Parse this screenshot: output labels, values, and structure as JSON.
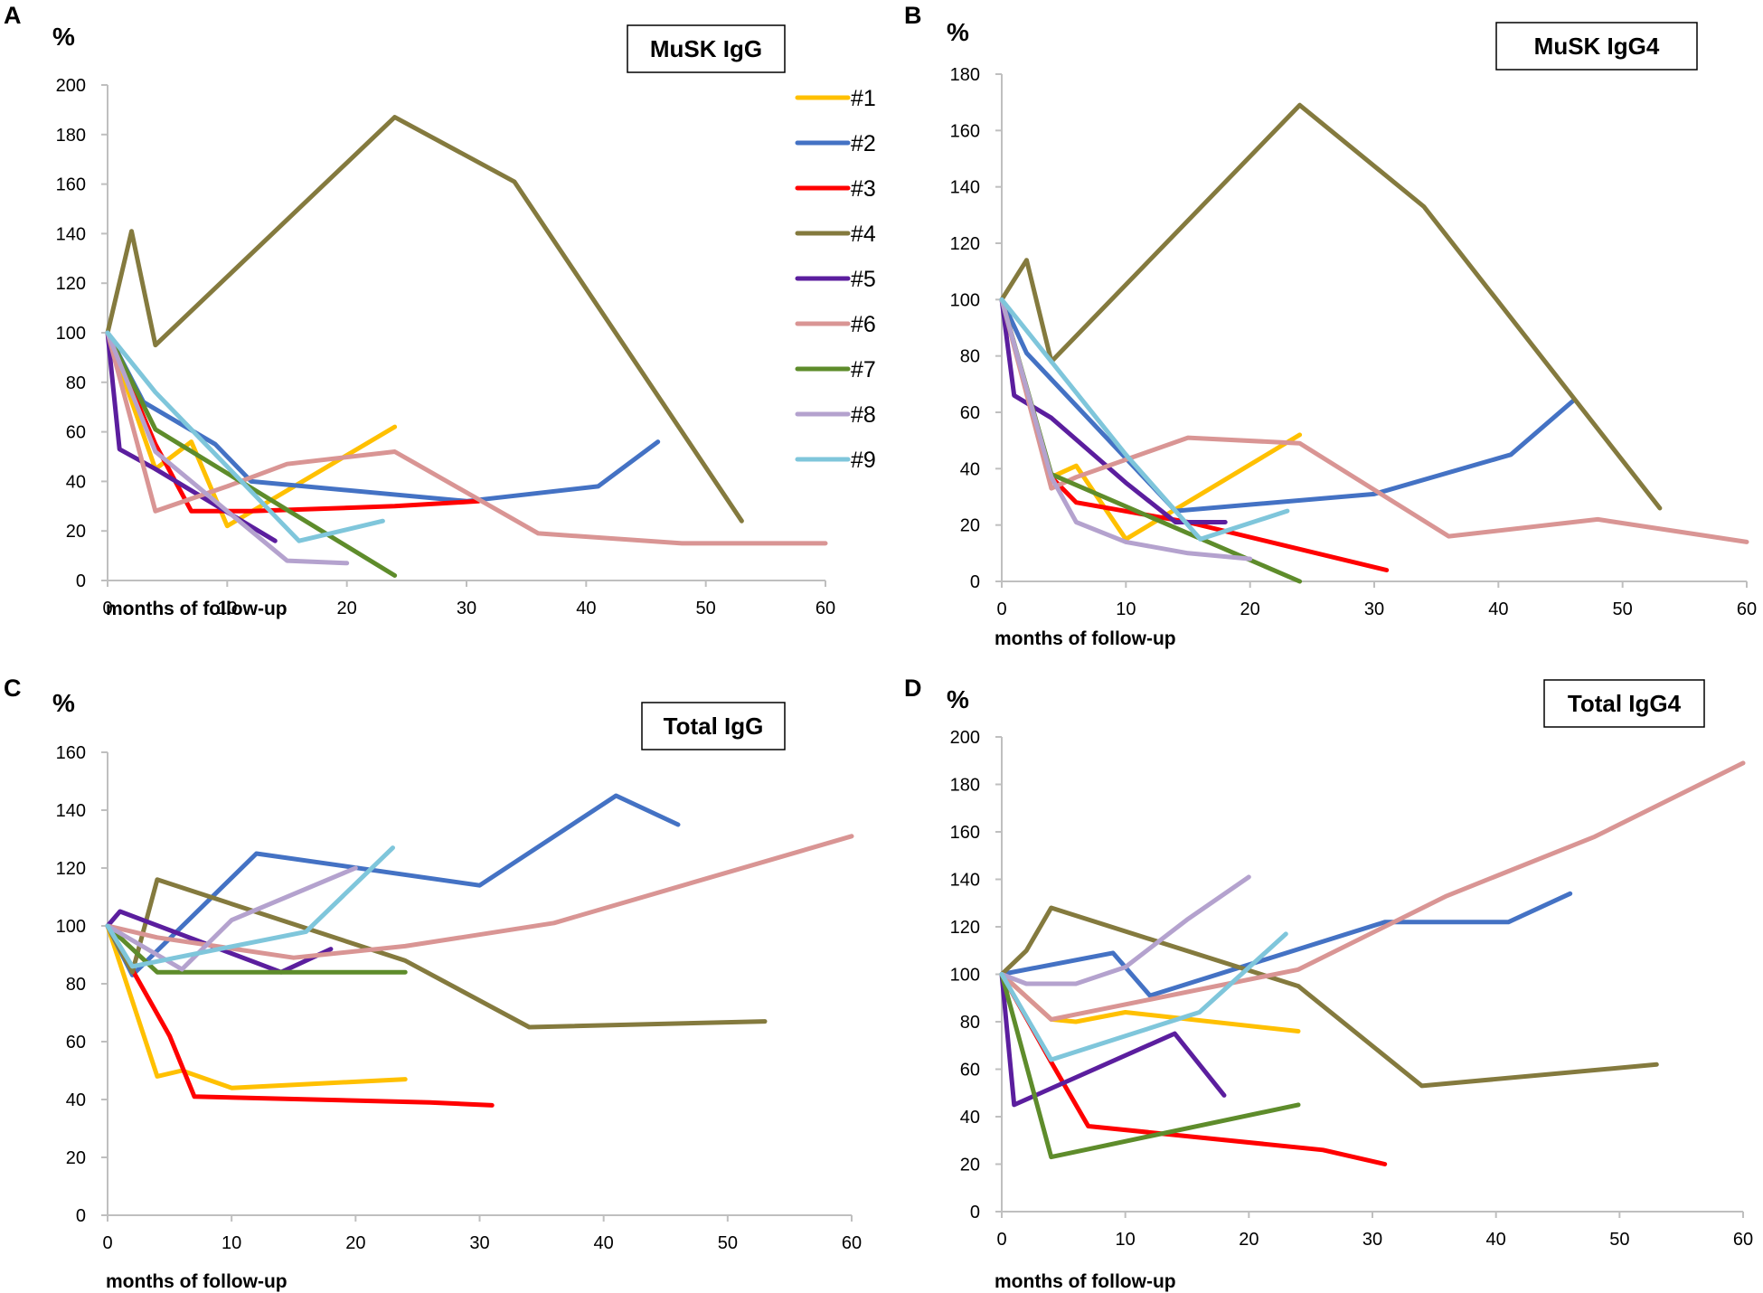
{
  "figure": {
    "legend": {
      "entries": [
        {
          "label": "#1",
          "color": "#FFC000"
        },
        {
          "label": "#2",
          "color": "#4472C4"
        },
        {
          "label": "#3",
          "color": "#FF0000"
        },
        {
          "label": "#4",
          "color": "#847A3E"
        },
        {
          "label": "#5",
          "color": "#5B1E9E"
        },
        {
          "label": "#6",
          "color": "#D99594"
        },
        {
          "label": "#7",
          "color": "#5E8C2B"
        },
        {
          "label": "#8",
          "color": "#B4A2CE"
        },
        {
          "label": "#9",
          "color": "#7FC6DB"
        }
      ]
    }
  },
  "chart_data": [
    {
      "panel": "A",
      "type": "line",
      "title": "MuSK IgG",
      "ylabel": "%",
      "xlabel": "months of follow-up",
      "xlim": [
        0,
        60
      ],
      "ylim": [
        0,
        200
      ],
      "xticks": [
        0,
        10,
        20,
        30,
        40,
        50,
        60
      ],
      "yticks": [
        0,
        20,
        40,
        60,
        80,
        100,
        120,
        140,
        160,
        180,
        200
      ],
      "series": [
        {
          "name": "#1",
          "x": [
            0,
            4,
            7,
            10,
            24
          ],
          "y": [
            100,
            45,
            56,
            22,
            62
          ]
        },
        {
          "name": "#2",
          "x": [
            0,
            3,
            9,
            12,
            30,
            41,
            46
          ],
          "y": [
            100,
            72,
            55,
            40,
            32,
            38,
            56
          ]
        },
        {
          "name": "#3",
          "x": [
            0,
            4,
            7,
            12,
            24,
            31
          ],
          "y": [
            100,
            55,
            28,
            28,
            30,
            32
          ]
        },
        {
          "name": "#4",
          "x": [
            0,
            2,
            4,
            24,
            34,
            53
          ],
          "y": [
            100,
            141,
            95,
            187,
            161,
            24
          ]
        },
        {
          "name": "#5",
          "x": [
            0,
            1,
            4,
            14
          ],
          "y": [
            100,
            53,
            45,
            16
          ]
        },
        {
          "name": "#6",
          "x": [
            0,
            4,
            10,
            15,
            24,
            36,
            48,
            60
          ],
          "y": [
            100,
            28,
            38,
            47,
            52,
            19,
            15,
            15
          ]
        },
        {
          "name": "#7",
          "x": [
            0,
            4,
            24
          ],
          "y": [
            100,
            61,
            2
          ]
        },
        {
          "name": "#8",
          "x": [
            0,
            4,
            15,
            20
          ],
          "y": [
            100,
            52,
            8,
            7
          ]
        },
        {
          "name": "#9",
          "x": [
            0,
            4,
            16,
            23
          ],
          "y": [
            100,
            76,
            16,
            24
          ]
        }
      ]
    },
    {
      "panel": "B",
      "type": "line",
      "title": "MuSK IgG4",
      "ylabel": "%",
      "xlabel": "months of follow-up",
      "xlim": [
        0,
        60
      ],
      "ylim": [
        0,
        180
      ],
      "xticks": [
        0,
        10,
        20,
        30,
        40,
        50,
        60
      ],
      "yticks": [
        0,
        20,
        40,
        60,
        80,
        100,
        120,
        140,
        160,
        180
      ],
      "series": [
        {
          "name": "#1",
          "x": [
            0,
            4,
            6,
            10,
            24
          ],
          "y": [
            100,
            37,
            41,
            15,
            52
          ]
        },
        {
          "name": "#2",
          "x": [
            0,
            2,
            14,
            30,
            41,
            46
          ],
          "y": [
            100,
            81,
            25,
            31,
            45,
            64
          ]
        },
        {
          "name": "#3",
          "x": [
            0,
            4,
            6,
            15,
            31
          ],
          "y": [
            100,
            37,
            28,
            21,
            4
          ]
        },
        {
          "name": "#4",
          "x": [
            0,
            2,
            4,
            24,
            34,
            53
          ],
          "y": [
            100,
            114,
            78,
            169,
            133,
            26
          ]
        },
        {
          "name": "#5",
          "x": [
            0,
            1,
            4,
            10,
            14,
            18
          ],
          "y": [
            100,
            66,
            58,
            35,
            21,
            21
          ]
        },
        {
          "name": "#6",
          "x": [
            0,
            4,
            6,
            15,
            24,
            36,
            48,
            60
          ],
          "y": [
            100,
            33,
            37,
            51,
            49,
            16,
            22,
            14
          ]
        },
        {
          "name": "#7",
          "x": [
            0,
            4,
            24
          ],
          "y": [
            100,
            38,
            0
          ]
        },
        {
          "name": "#8",
          "x": [
            0,
            4,
            6,
            10,
            15,
            20
          ],
          "y": [
            100,
            37,
            21,
            14,
            10,
            8
          ]
        },
        {
          "name": "#9",
          "x": [
            0,
            10,
            16,
            23
          ],
          "y": [
            100,
            45,
            15,
            25
          ]
        }
      ]
    },
    {
      "panel": "C",
      "type": "line",
      "title": "Total IgG",
      "ylabel": "%",
      "xlabel": "months of follow-up",
      "xlim": [
        0,
        60
      ],
      "ylim": [
        0,
        160
      ],
      "xticks": [
        0,
        10,
        20,
        30,
        40,
        50,
        60
      ],
      "yticks": [
        0,
        20,
        40,
        60,
        80,
        100,
        120,
        140,
        160
      ],
      "series": [
        {
          "name": "#1",
          "x": [
            0,
            4,
            6,
            10,
            24
          ],
          "y": [
            100,
            48,
            50,
            44,
            47
          ]
        },
        {
          "name": "#2",
          "x": [
            0,
            2,
            12,
            30,
            41,
            46
          ],
          "y": [
            100,
            83,
            125,
            114,
            145,
            135
          ]
        },
        {
          "name": "#3",
          "x": [
            0,
            5,
            7,
            26,
            31
          ],
          "y": [
            100,
            62,
            41,
            39,
            38
          ]
        },
        {
          "name": "#4",
          "x": [
            0,
            2,
            4,
            24,
            34,
            53
          ],
          "y": [
            100,
            84,
            116,
            88,
            65,
            67
          ]
        },
        {
          "name": "#5",
          "x": [
            0,
            1,
            14,
            18
          ],
          "y": [
            100,
            105,
            84,
            92
          ]
        },
        {
          "name": "#6",
          "x": [
            0,
            4,
            15,
            24,
            36,
            60
          ],
          "y": [
            100,
            96,
            89,
            93,
            101,
            131
          ]
        },
        {
          "name": "#7",
          "x": [
            0,
            4,
            24
          ],
          "y": [
            100,
            84,
            84
          ]
        },
        {
          "name": "#8",
          "x": [
            0,
            6,
            10,
            20
          ],
          "y": [
            100,
            85,
            102,
            120
          ]
        },
        {
          "name": "#9",
          "x": [
            0,
            2,
            16,
            23
          ],
          "y": [
            100,
            86,
            98,
            127
          ]
        }
      ]
    },
    {
      "panel": "D",
      "type": "line",
      "title": "Total IgG4",
      "ylabel": "%",
      "xlabel": "months of follow-up",
      "xlim": [
        0,
        60
      ],
      "ylim": [
        0,
        200
      ],
      "xticks": [
        0,
        10,
        20,
        30,
        40,
        50,
        60
      ],
      "yticks": [
        0,
        20,
        40,
        60,
        80,
        100,
        120,
        140,
        160,
        180,
        200
      ],
      "series": [
        {
          "name": "#1",
          "x": [
            0,
            4,
            6,
            10,
            24
          ],
          "y": [
            100,
            81,
            80,
            84,
            76
          ]
        },
        {
          "name": "#2",
          "x": [
            0,
            9,
            12,
            31,
            41,
            46
          ],
          "y": [
            100,
            109,
            91,
            122,
            122,
            134
          ]
        },
        {
          "name": "#3",
          "x": [
            0,
            4,
            7,
            26,
            31
          ],
          "y": [
            100,
            63,
            36,
            26,
            20
          ]
        },
        {
          "name": "#4",
          "x": [
            0,
            2,
            4,
            24,
            34,
            53
          ],
          "y": [
            100,
            110,
            128,
            95,
            53,
            62
          ]
        },
        {
          "name": "#5",
          "x": [
            0,
            1,
            14,
            18
          ],
          "y": [
            100,
            45,
            75,
            49
          ]
        },
        {
          "name": "#6",
          "x": [
            0,
            4,
            24,
            36,
            48,
            60
          ],
          "y": [
            100,
            81,
            102,
            133,
            158,
            189
          ]
        },
        {
          "name": "#7",
          "x": [
            0,
            4,
            24
          ],
          "y": [
            100,
            23,
            45
          ]
        },
        {
          "name": "#8",
          "x": [
            0,
            2,
            6,
            10,
            15,
            20
          ],
          "y": [
            100,
            96,
            96,
            103,
            123,
            141
          ]
        },
        {
          "name": "#9",
          "x": [
            0,
            4,
            16,
            23
          ],
          "y": [
            100,
            64,
            84,
            117
          ]
        }
      ]
    }
  ]
}
